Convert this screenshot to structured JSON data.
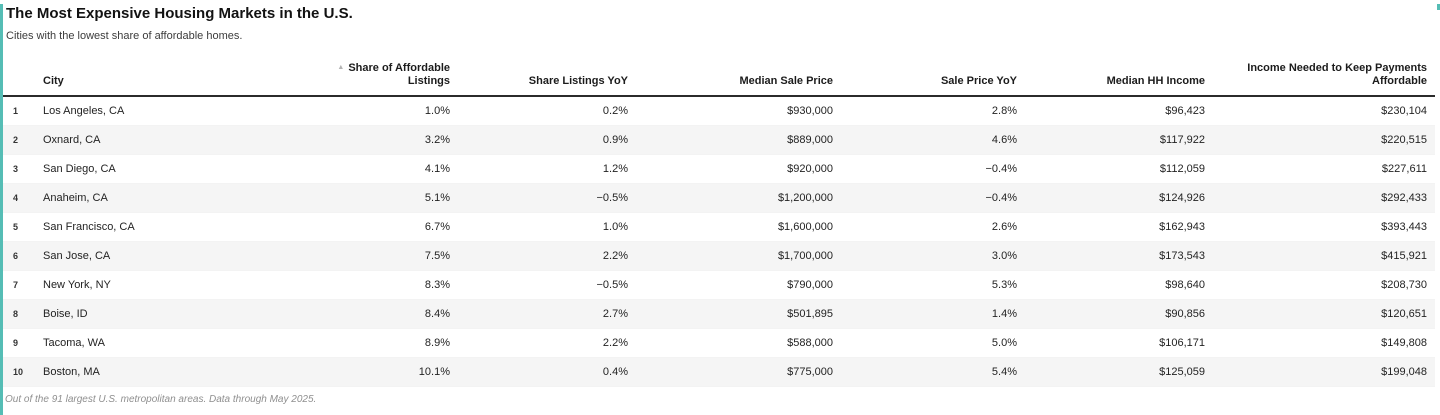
{
  "header": {
    "title": "The Most Expensive Housing Markets in the U.S.",
    "subtitle": "Cities with the lowest share of affordable homes."
  },
  "table": {
    "sort_icon": "▲",
    "columns": [
      {
        "key": "rank",
        "label": "",
        "align": "left",
        "sortable": false,
        "sorted": false
      },
      {
        "key": "city",
        "label": "City",
        "align": "left",
        "sortable": true,
        "sorted": false
      },
      {
        "key": "share-of-affordable-listings",
        "label": "Share of Affordable Listings",
        "align": "right",
        "sortable": true,
        "sorted": true
      },
      {
        "key": "share-listings-yoy",
        "label": "Share Listings YoY",
        "align": "right",
        "sortable": true,
        "sorted": false
      },
      {
        "key": "median-sale-price",
        "label": "Median Sale Price",
        "align": "right",
        "sortable": true,
        "sorted": false
      },
      {
        "key": "sale-price-yoy",
        "label": "Sale Price YoY",
        "align": "right",
        "sortable": true,
        "sorted": false
      },
      {
        "key": "median-hh-income",
        "label": "Median HH Income",
        "align": "right",
        "sortable": true,
        "sorted": false
      },
      {
        "key": "income-needed",
        "label": "Income Needed to Keep Payments Affordable",
        "align": "right",
        "sortable": true,
        "sorted": false
      }
    ],
    "rows": [
      {
        "num": "1",
        "city": "Los Angeles, CA",
        "values": [
          "1.0%",
          "0.2%",
          "$930,000",
          "2.8%",
          "$96,423",
          "$230,104"
        ]
      },
      {
        "num": "2",
        "city": "Oxnard, CA",
        "values": [
          "3.2%",
          "0.9%",
          "$889,000",
          "4.6%",
          "$117,922",
          "$220,515"
        ]
      },
      {
        "num": "3",
        "city": "San Diego, CA",
        "values": [
          "4.1%",
          "1.2%",
          "$920,000",
          "−0.4%",
          "$112,059",
          "$227,611"
        ]
      },
      {
        "num": "4",
        "city": "Anaheim, CA",
        "values": [
          "5.1%",
          "−0.5%",
          "$1,200,000",
          "−0.4%",
          "$124,926",
          "$292,433"
        ]
      },
      {
        "num": "5",
        "city": "San Francisco, CA",
        "values": [
          "6.7%",
          "1.0%",
          "$1,600,000",
          "2.6%",
          "$162,943",
          "$393,443"
        ]
      },
      {
        "num": "6",
        "city": "San Jose, CA",
        "values": [
          "7.5%",
          "2.2%",
          "$1,700,000",
          "3.0%",
          "$173,543",
          "$415,921"
        ]
      },
      {
        "num": "7",
        "city": "New York, NY",
        "values": [
          "8.3%",
          "−0.5%",
          "$790,000",
          "5.3%",
          "$98,640",
          "$208,730"
        ]
      },
      {
        "num": "8",
        "city": "Boise, ID",
        "values": [
          "8.4%",
          "2.7%",
          "$501,895",
          "1.4%",
          "$90,856",
          "$120,651"
        ]
      },
      {
        "num": "9",
        "city": "Tacoma, WA",
        "values": [
          "8.9%",
          "2.2%",
          "$588,000",
          "5.0%",
          "$106,171",
          "$149,808"
        ]
      },
      {
        "num": "10",
        "city": "Boston, MA",
        "values": [
          "10.1%",
          "0.4%",
          "$775,000",
          "5.4%",
          "$125,059",
          "$199,048"
        ]
      }
    ]
  },
  "footer": {
    "note": "Out of the 91 largest U.S. metropolitan areas. Data through May 2025."
  },
  "colors": {
    "accent_teal": "#55bdb5",
    "header_border": "#2b2b2b",
    "zebra_row": "#f5f5f5",
    "sort_icon_gray": "#b3b3b3"
  },
  "chart_data": {
    "type": "table",
    "title": "The Most Expensive Housing Markets in the U.S.",
    "subtitle": "Cities with the lowest share of affordable homes.",
    "note": "Out of the 91 largest U.S. metropolitan areas. Data through May 2025.",
    "sorted_by": "Share of Affordable Listings",
    "sort_direction": "ascending",
    "columns": [
      "City",
      "Share of Affordable Listings",
      "Share Listings YoY",
      "Median Sale Price",
      "Sale Price YoY",
      "Median HH Income",
      "Income Needed to Keep Payments Affordable"
    ],
    "rows": [
      [
        "Los Angeles, CA",
        "1.0%",
        "0.2%",
        "$930,000",
        "2.8%",
        "$96,423",
        "$230,104"
      ],
      [
        "Oxnard, CA",
        "3.2%",
        "0.9%",
        "$889,000",
        "4.6%",
        "$117,922",
        "$220,515"
      ],
      [
        "San Diego, CA",
        "4.1%",
        "1.2%",
        "$920,000",
        "−0.4%",
        "$112,059",
        "$227,611"
      ],
      [
        "Anaheim, CA",
        "5.1%",
        "−0.5%",
        "$1,200,000",
        "−0.4%",
        "$124,926",
        "$292,433"
      ],
      [
        "San Francisco, CA",
        "6.7%",
        "1.0%",
        "$1,600,000",
        "2.6%",
        "$162,943",
        "$393,443"
      ],
      [
        "San Jose, CA",
        "7.5%",
        "2.2%",
        "$1,700,000",
        "3.0%",
        "$173,543",
        "$415,921"
      ],
      [
        "New York, NY",
        "8.3%",
        "−0.5%",
        "$790,000",
        "5.3%",
        "$98,640",
        "$208,730"
      ],
      [
        "Boise, ID",
        "8.4%",
        "2.7%",
        "$501,895",
        "1.4%",
        "$90,856",
        "$120,651"
      ],
      [
        "Tacoma, WA",
        "8.9%",
        "2.2%",
        "$588,000",
        "5.0%",
        "$106,171",
        "$149,808"
      ],
      [
        "Boston, MA",
        "10.1%",
        "0.4%",
        "$775,000",
        "5.4%",
        "$125,059",
        "$199,048"
      ]
    ]
  }
}
